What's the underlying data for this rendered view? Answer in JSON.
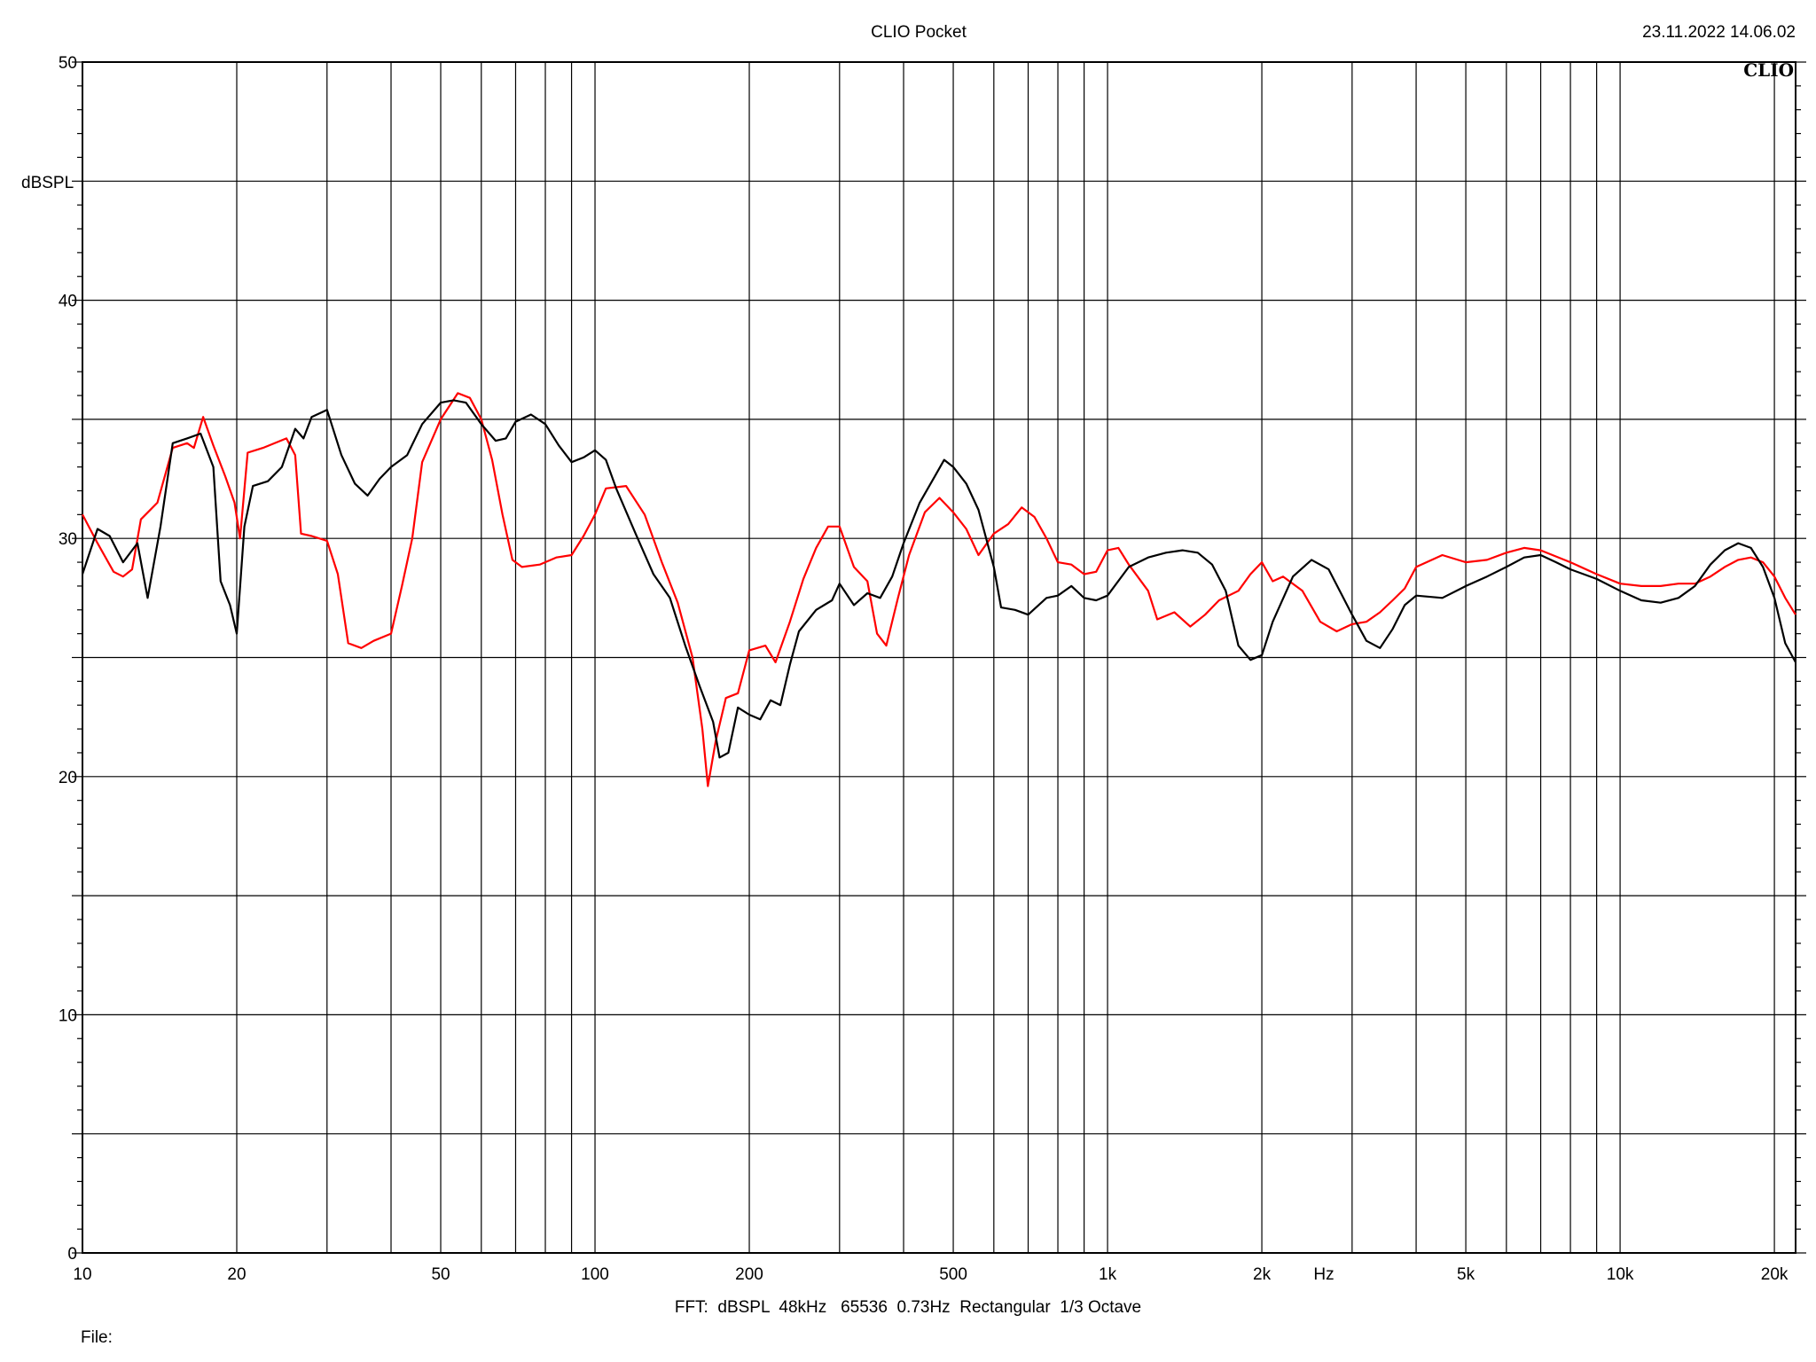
{
  "header": {
    "title": "CLIO Pocket",
    "timestamp": "23.11.2022 14.06.02",
    "logo": "CLIO"
  },
  "footer": {
    "settings": "FFT:  dBSPL  48kHz   65536  0.73Hz  Rectangular  1/3 Octave",
    "file_label": "File:"
  },
  "colors": {
    "background": "#ffffff",
    "grid": "#000000",
    "series_black": "#000000",
    "series_red": "#ff0000"
  },
  "chart_data": {
    "type": "line",
    "title": "CLIO Pocket",
    "xlabel": "Hz",
    "ylabel": "dBSPL",
    "xscale": "log",
    "xlim": [
      10,
      22000
    ],
    "ylim": [
      0,
      50
    ],
    "grid": true,
    "x_ticks": [
      {
        "value": 10,
        "label": "10"
      },
      {
        "value": 20,
        "label": "20"
      },
      {
        "value": 50,
        "label": "50"
      },
      {
        "value": 100,
        "label": "100"
      },
      {
        "value": 200,
        "label": "200"
      },
      {
        "value": 500,
        "label": "500"
      },
      {
        "value": 1000,
        "label": "1k"
      },
      {
        "value": 2000,
        "label": "2k"
      },
      {
        "value": 5000,
        "label": "5k"
      },
      {
        "value": 10000,
        "label": "10k"
      },
      {
        "value": 20000,
        "label": "20k"
      }
    ],
    "x_minor_gridlines": [
      30,
      40,
      60,
      70,
      80,
      90,
      300,
      400,
      600,
      700,
      800,
      900,
      3000,
      4000,
      6000,
      7000,
      8000,
      9000
    ],
    "y_ticks": [
      {
        "value": 0,
        "label": "0"
      },
      {
        "value": 10,
        "label": "10"
      },
      {
        "value": 20,
        "label": "20"
      },
      {
        "value": 30,
        "label": "30"
      },
      {
        "value": 40,
        "label": "40"
      },
      {
        "value": 50,
        "label": "50"
      }
    ],
    "y_gridlines": [
      5,
      10,
      15,
      20,
      25,
      30,
      35,
      40,
      45,
      50
    ],
    "series": [
      {
        "color": "#000000",
        "points": [
          [
            10,
            28.5
          ],
          [
            10.7,
            30.4
          ],
          [
            11.3,
            30.1
          ],
          [
            12,
            29.0
          ],
          [
            12.8,
            29.8
          ],
          [
            13.4,
            27.5
          ],
          [
            14.2,
            30.5
          ],
          [
            15,
            34.0
          ],
          [
            16,
            34.2
          ],
          [
            17,
            34.4
          ],
          [
            18,
            33.0
          ],
          [
            18.6,
            28.2
          ],
          [
            19.4,
            27.2
          ],
          [
            20,
            26.0
          ],
          [
            20.7,
            30.5
          ],
          [
            21.5,
            32.2
          ],
          [
            23,
            32.4
          ],
          [
            24.5,
            33.0
          ],
          [
            26,
            34.6
          ],
          [
            27,
            34.2
          ],
          [
            28,
            35.1
          ],
          [
            30,
            35.4
          ],
          [
            32,
            33.5
          ],
          [
            34,
            32.3
          ],
          [
            36,
            31.8
          ],
          [
            38,
            32.5
          ],
          [
            40,
            33.0
          ],
          [
            43,
            33.5
          ],
          [
            46,
            34.8
          ],
          [
            50,
            35.7
          ],
          [
            53,
            35.8
          ],
          [
            56,
            35.7
          ],
          [
            60,
            34.8
          ],
          [
            64,
            34.1
          ],
          [
            67,
            34.2
          ],
          [
            70,
            34.9
          ],
          [
            75,
            35.2
          ],
          [
            80,
            34.8
          ],
          [
            85,
            33.9
          ],
          [
            90,
            33.2
          ],
          [
            95,
            33.4
          ],
          [
            100,
            33.7
          ],
          [
            105,
            33.3
          ],
          [
            110,
            32.1
          ],
          [
            120,
            30.2
          ],
          [
            130,
            28.5
          ],
          [
            140,
            27.5
          ],
          [
            150,
            25.5
          ],
          [
            160,
            23.8
          ],
          [
            170,
            22.3
          ],
          [
            175,
            20.8
          ],
          [
            182,
            21.0
          ],
          [
            190,
            22.9
          ],
          [
            200,
            22.6
          ],
          [
            210,
            22.4
          ],
          [
            220,
            23.2
          ],
          [
            230,
            23.0
          ],
          [
            240,
            24.7
          ],
          [
            250,
            26.1
          ],
          [
            270,
            27.0
          ],
          [
            290,
            27.4
          ],
          [
            300,
            28.1
          ],
          [
            320,
            27.2
          ],
          [
            340,
            27.7
          ],
          [
            360,
            27.5
          ],
          [
            380,
            28.4
          ],
          [
            400,
            29.8
          ],
          [
            430,
            31.5
          ],
          [
            460,
            32.6
          ],
          [
            480,
            33.3
          ],
          [
            500,
            33.0
          ],
          [
            530,
            32.3
          ],
          [
            560,
            31.2
          ],
          [
            600,
            28.8
          ],
          [
            620,
            27.1
          ],
          [
            660,
            27.0
          ],
          [
            700,
            26.8
          ],
          [
            760,
            27.5
          ],
          [
            800,
            27.6
          ],
          [
            850,
            28.0
          ],
          [
            900,
            27.5
          ],
          [
            950,
            27.4
          ],
          [
            1000,
            27.6
          ],
          [
            1100,
            28.8
          ],
          [
            1200,
            29.2
          ],
          [
            1300,
            29.4
          ],
          [
            1400,
            29.5
          ],
          [
            1500,
            29.4
          ],
          [
            1600,
            28.9
          ],
          [
            1700,
            27.8
          ],
          [
            1800,
            25.5
          ],
          [
            1900,
            24.9
          ],
          [
            2000,
            25.1
          ],
          [
            2100,
            26.5
          ],
          [
            2300,
            28.4
          ],
          [
            2500,
            29.1
          ],
          [
            2700,
            28.7
          ],
          [
            3000,
            26.8
          ],
          [
            3200,
            25.7
          ],
          [
            3400,
            25.4
          ],
          [
            3600,
            26.2
          ],
          [
            3800,
            27.2
          ],
          [
            4000,
            27.6
          ],
          [
            4500,
            27.5
          ],
          [
            5000,
            28.0
          ],
          [
            5500,
            28.4
          ],
          [
            6000,
            28.8
          ],
          [
            6500,
            29.2
          ],
          [
            7000,
            29.3
          ],
          [
            7500,
            29.0
          ],
          [
            8000,
            28.7
          ],
          [
            9000,
            28.3
          ],
          [
            10000,
            27.8
          ],
          [
            10500,
            27.6
          ],
          [
            11000,
            27.4
          ],
          [
            12000,
            27.3
          ],
          [
            13000,
            27.5
          ],
          [
            14000,
            28.0
          ],
          [
            15000,
            28.9
          ],
          [
            16000,
            29.5
          ],
          [
            17000,
            29.8
          ],
          [
            18000,
            29.6
          ],
          [
            19000,
            28.8
          ],
          [
            20000,
            27.5
          ],
          [
            21000,
            25.6
          ],
          [
            22000,
            24.8
          ]
        ]
      },
      {
        "color": "#ff0000",
        "points": [
          [
            10,
            31.0
          ],
          [
            10.7,
            29.8
          ],
          [
            11.5,
            28.6
          ],
          [
            12,
            28.4
          ],
          [
            12.5,
            28.7
          ],
          [
            13,
            30.8
          ],
          [
            14,
            31.5
          ],
          [
            15,
            33.8
          ],
          [
            16,
            34.0
          ],
          [
            16.5,
            33.8
          ],
          [
            17.2,
            35.1
          ],
          [
            18,
            33.9
          ],
          [
            19,
            32.6
          ],
          [
            19.8,
            31.5
          ],
          [
            20.3,
            30.0
          ],
          [
            21,
            33.6
          ],
          [
            22.5,
            33.8
          ],
          [
            25,
            34.2
          ],
          [
            26,
            33.5
          ],
          [
            26.7,
            30.2
          ],
          [
            28,
            30.1
          ],
          [
            30,
            29.9
          ],
          [
            31.5,
            28.5
          ],
          [
            33,
            25.6
          ],
          [
            35,
            25.4
          ],
          [
            37,
            25.7
          ],
          [
            40,
            26.0
          ],
          [
            42,
            28.0
          ],
          [
            44,
            30.0
          ],
          [
            46,
            33.2
          ],
          [
            50,
            35.0
          ],
          [
            54,
            36.1
          ],
          [
            57,
            35.9
          ],
          [
            60,
            35.0
          ],
          [
            63,
            33.3
          ],
          [
            66,
            31.0
          ],
          [
            69,
            29.1
          ],
          [
            72,
            28.8
          ],
          [
            78,
            28.9
          ],
          [
            84,
            29.2
          ],
          [
            90,
            29.3
          ],
          [
            95,
            30.1
          ],
          [
            100,
            31.0
          ],
          [
            105,
            32.1
          ],
          [
            115,
            32.2
          ],
          [
            125,
            31.0
          ],
          [
            135,
            29.0
          ],
          [
            145,
            27.3
          ],
          [
            155,
            25.0
          ],
          [
            162,
            22.0
          ],
          [
            166,
            19.6
          ],
          [
            172,
            21.5
          ],
          [
            180,
            23.3
          ],
          [
            190,
            23.5
          ],
          [
            200,
            25.3
          ],
          [
            215,
            25.5
          ],
          [
            225,
            24.8
          ],
          [
            240,
            26.5
          ],
          [
            255,
            28.3
          ],
          [
            270,
            29.6
          ],
          [
            285,
            30.5
          ],
          [
            300,
            30.5
          ],
          [
            320,
            28.8
          ],
          [
            340,
            28.2
          ],
          [
            355,
            26.0
          ],
          [
            370,
            25.5
          ],
          [
            390,
            27.5
          ],
          [
            410,
            29.3
          ],
          [
            440,
            31.1
          ],
          [
            470,
            31.7
          ],
          [
            500,
            31.1
          ],
          [
            530,
            30.4
          ],
          [
            560,
            29.3
          ],
          [
            600,
            30.2
          ],
          [
            640,
            30.6
          ],
          [
            680,
            31.3
          ],
          [
            720,
            30.9
          ],
          [
            760,
            30.0
          ],
          [
            800,
            29.0
          ],
          [
            850,
            28.9
          ],
          [
            900,
            28.5
          ],
          [
            950,
            28.6
          ],
          [
            1000,
            29.5
          ],
          [
            1050,
            29.6
          ],
          [
            1100,
            28.9
          ],
          [
            1200,
            27.8
          ],
          [
            1250,
            26.6
          ],
          [
            1350,
            26.9
          ],
          [
            1450,
            26.3
          ],
          [
            1550,
            26.8
          ],
          [
            1650,
            27.4
          ],
          [
            1800,
            27.8
          ],
          [
            1900,
            28.5
          ],
          [
            2000,
            29.0
          ],
          [
            2100,
            28.2
          ],
          [
            2200,
            28.4
          ],
          [
            2400,
            27.8
          ],
          [
            2600,
            26.5
          ],
          [
            2800,
            26.1
          ],
          [
            3000,
            26.4
          ],
          [
            3200,
            26.5
          ],
          [
            3400,
            26.9
          ],
          [
            3600,
            27.4
          ],
          [
            3800,
            27.9
          ],
          [
            4000,
            28.8
          ],
          [
            4500,
            29.3
          ],
          [
            5000,
            29.0
          ],
          [
            5500,
            29.1
          ],
          [
            6000,
            29.4
          ],
          [
            6500,
            29.6
          ],
          [
            7000,
            29.5
          ],
          [
            8000,
            29.0
          ],
          [
            9000,
            28.5
          ],
          [
            10000,
            28.1
          ],
          [
            11000,
            28.0
          ],
          [
            12000,
            28.0
          ],
          [
            13000,
            28.1
          ],
          [
            14000,
            28.1
          ],
          [
            15000,
            28.4
          ],
          [
            16000,
            28.8
          ],
          [
            17000,
            29.1
          ],
          [
            18000,
            29.2
          ],
          [
            19000,
            29.0
          ],
          [
            20000,
            28.4
          ],
          [
            21000,
            27.5
          ],
          [
            22000,
            26.8
          ]
        ]
      }
    ]
  }
}
